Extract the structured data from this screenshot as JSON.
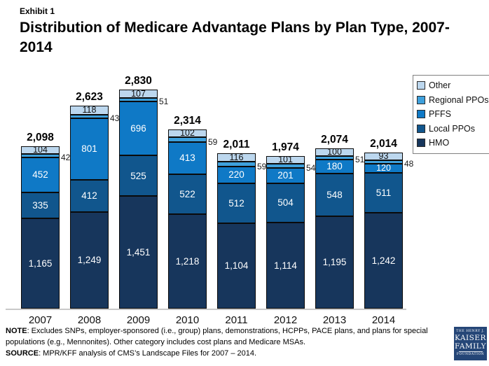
{
  "header": {
    "exhibit": "Exhibit 1",
    "title": "Distribution of Medicare Advantage Plans by Plan Type, 2007-2014"
  },
  "chart_data": {
    "type": "bar",
    "stacked": true,
    "title": "Distribution of Medicare Advantage Plans by Plan Type, 2007-2014",
    "xlabel": "",
    "ylabel": "",
    "ylim": [
      0,
      3000
    ],
    "grid": false,
    "legend_position": "top-right",
    "categories": [
      "2007",
      "2008",
      "2009",
      "2010",
      "2011",
      "2012",
      "2013",
      "2014"
    ],
    "totals": [
      2098,
      2623,
      2830,
      2314,
      2011,
      1974,
      2074,
      2014
    ],
    "series": [
      {
        "name": "HMO",
        "color": "#17365C",
        "text_color": "#ffffff",
        "values": [
          1165,
          1249,
          1451,
          1218,
          1104,
          1114,
          1195,
          1242
        ]
      },
      {
        "name": "Local PPOs",
        "color": "#11568D",
        "text_color": "#ffffff",
        "values": [
          335,
          412,
          525,
          522,
          512,
          504,
          548,
          511
        ]
      },
      {
        "name": "PFFS",
        "color": "#0F79C6",
        "text_color": "#ffffff",
        "values": [
          452,
          801,
          696,
          413,
          220,
          201,
          180,
          120
        ]
      },
      {
        "name": "Regional PPOs",
        "color": "#3EA0DC",
        "text_color": "#111111",
        "label_outside": true,
        "values": [
          42,
          43,
          51,
          59,
          59,
          54,
          51,
          48
        ]
      },
      {
        "name": "Other",
        "color": "#BCD7EE",
        "text_color": "#111111",
        "values": [
          104,
          118,
          107,
          102,
          116,
          101,
          100,
          93
        ]
      }
    ],
    "legend": [
      "Other",
      "Regional PPOs",
      "PFFS",
      "Local PPOs",
      "HMO"
    ]
  },
  "footer": {
    "note_label": "NOTE",
    "note_text": ": Excludes SNPs, employer-sponsored (i.e., group) plans, demonstrations, HCPPs, PACE plans, and plans for special populations (e.g., Mennonites).  Other category includes cost plans and Medicare MSAs.",
    "source_label": "SOURCE",
    "source_text": ":  MPR/KFF analysis of CMS’s Landscape Files for 2007 – 2014."
  },
  "logo": {
    "line1": "THE HENRY J.",
    "line2": "KAISER",
    "line3": "FAMILY",
    "line4": "FOUNDATION"
  }
}
